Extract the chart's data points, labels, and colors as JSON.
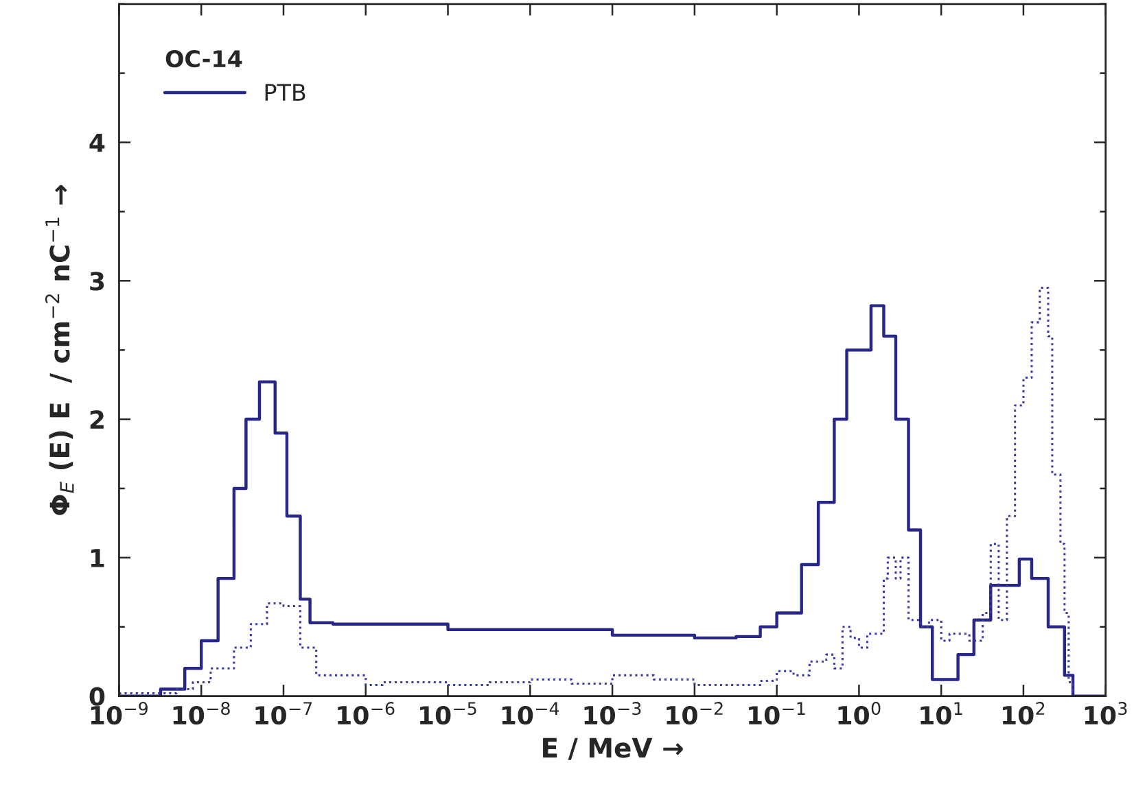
{
  "chart_data": {
    "type": "step",
    "xlabel": "E / MeV →",
    "ylabel": "Φ$_{E}$ (E) E  / cm$^{−2}$ nC$^{−1}$ →",
    "legend_title": "OC-14",
    "legend": "top left",
    "log": "x",
    "grid": false,
    "xlim": [
      1e-09,
      1000
    ],
    "ylim": [
      0,
      5
    ],
    "xticks": [
      {
        "value": 1e-09,
        "label": "10$^{−9}$"
      },
      {
        "value": 1e-08,
        "label": "10$^{−8}$"
      },
      {
        "value": 1e-07,
        "label": "10$^{−7}$"
      },
      {
        "value": 1e-06,
        "label": "10$^{−6}$"
      },
      {
        "value": 1e-05,
        "label": "10$^{−5}$"
      },
      {
        "value": 0.0001,
        "label": "10$^{−4}$"
      },
      {
        "value": 0.001,
        "label": "10$^{−3}$"
      },
      {
        "value": 0.01,
        "label": "10$^{−2}$"
      },
      {
        "value": 0.1,
        "label": "10$^{−1}$"
      },
      {
        "value": 1,
        "label": "10$^{0}$"
      },
      {
        "value": 10,
        "label": "10$^{1}$"
      },
      {
        "value": 100,
        "label": "10$^{2}$"
      },
      {
        "value": 1000,
        "label": "10$^{3}$"
      }
    ],
    "yticks": [
      0,
      {
        "value": 0.5,
        "label": null
      },
      1,
      {
        "value": 1.5,
        "label": null
      },
      2,
      {
        "value": 2.5,
        "label": null
      },
      3,
      {
        "value": 3.5,
        "label": null
      },
      4,
      {
        "value": 4.5,
        "label": null
      },
      {
        "value": 5,
        "label": null
      }
    ],
    "series": [
      {
        "name": "PTB",
        "color": "#27278a",
        "line_style": "solid",
        "x": [
          1e-09,
          3.2e-09,
          6.3e-09,
          1e-08,
          1.6e-08,
          2.5e-08,
          3.5e-08,
          5.1e-08,
          7.9e-08,
          1.1e-07,
          1.6e-07,
          2.1e-07,
          4e-07,
          1e-05,
          0.001,
          0.01,
          0.032,
          0.063,
          0.1,
          0.2,
          0.32,
          0.5,
          0.71,
          1.4,
          2,
          2.8,
          4,
          5.6,
          7.8,
          16,
          25,
          40,
          89,
          126,
          200,
          316,
          400,
          1000
        ],
        "values": [
          0,
          0.05,
          0.2,
          0.4,
          0.85,
          1.5,
          2.0,
          2.27,
          1.9,
          1.3,
          0.7,
          0.53,
          0.52,
          0.48,
          0.44,
          0.42,
          0.43,
          0.5,
          0.6,
          0.95,
          1.4,
          2.0,
          2.5,
          2.82,
          2.6,
          2.0,
          1.2,
          0.5,
          0.12,
          0.3,
          0.55,
          0.8,
          0.99,
          0.85,
          0.5,
          0.15,
          0,
          0
        ]
      },
      {
        "color": "#3a3aa0",
        "line_style": "dotted",
        "x": [
          1e-09,
          5e-09,
          7.9e-09,
          1.3e-08,
          2.5e-08,
          4e-08,
          6.3e-08,
          1e-07,
          1.6e-07,
          2.5e-07,
          1e-06,
          1.6e-06,
          1e-05,
          3.2e-05,
          0.0001,
          0.00032,
          0.001,
          0.0032,
          0.01,
          0.032,
          0.063,
          0.1,
          0.16,
          0.25,
          0.4,
          0.5,
          0.63,
          0.79,
          1,
          1.26,
          2,
          2.24,
          2.8,
          3.2,
          4,
          5.6,
          7.1,
          10,
          12.6,
          15.8,
          22,
          32,
          40,
          50,
          63,
          79,
          100,
          126,
          158,
          200,
          224,
          282,
          316,
          355,
          400
        ],
        "values": [
          0.02,
          0.05,
          0.1,
          0.2,
          0.35,
          0.52,
          0.67,
          0.65,
          0.35,
          0.15,
          0.08,
          0.1,
          0.08,
          0.1,
          0.12,
          0.09,
          0.15,
          0.12,
          0.08,
          0.08,
          0.11,
          0.18,
          0.15,
          0.25,
          0.3,
          0.2,
          0.5,
          0.42,
          0.35,
          0.45,
          0.85,
          1.0,
          0.85,
          1.0,
          0.55,
          0.5,
          0.55,
          0.4,
          0.45,
          0.45,
          0.4,
          0.6,
          1.1,
          0.55,
          1.3,
          2.1,
          2.3,
          2.7,
          2.95,
          2.6,
          1.6,
          1.1,
          0.6,
          0.1,
          0
        ]
      }
    ]
  }
}
